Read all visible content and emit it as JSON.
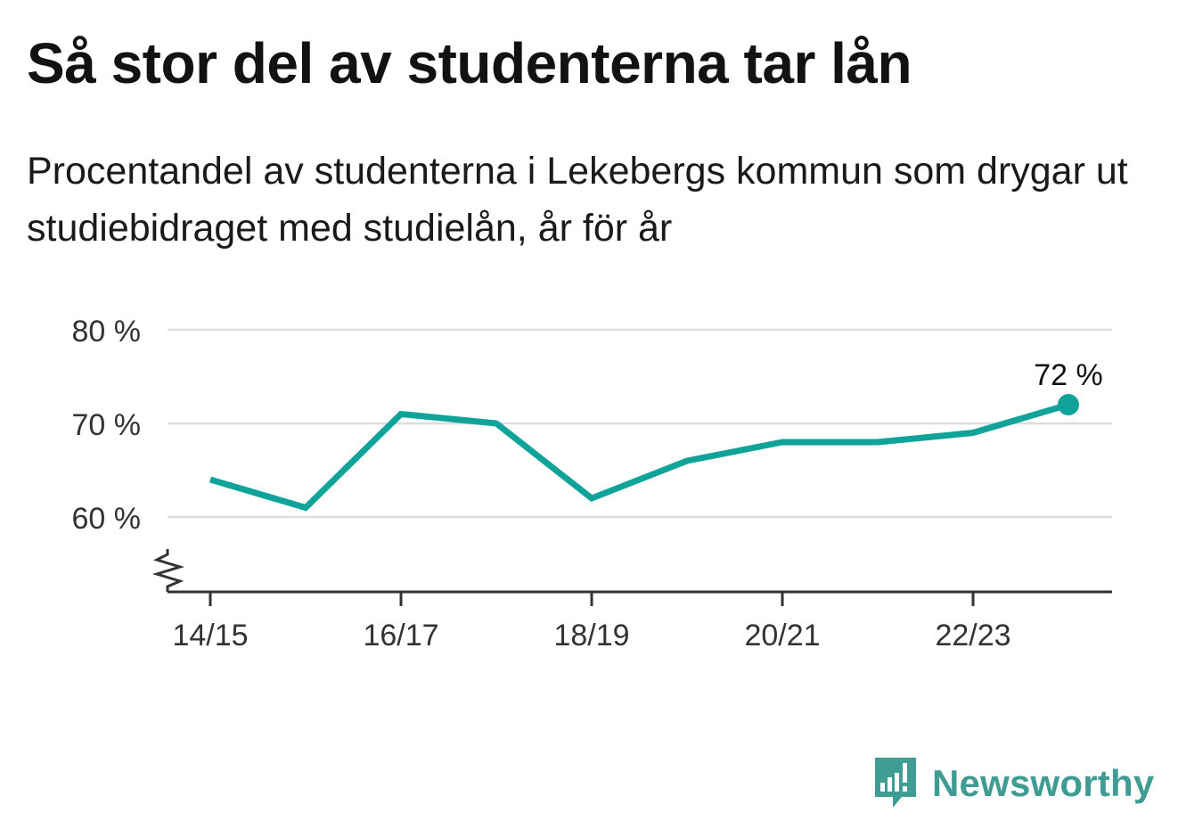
{
  "title": "Så stor del av studenterna tar lån",
  "subtitle": "Procentandel av studenterna i Lekebergs kommun som drygar ut studiebidraget med studielån, år för år",
  "brand": {
    "name": "Newsworthy",
    "logo_icon": "newsworthy-logo-icon"
  },
  "colors": {
    "line": "#0fa39a",
    "grid": "#dddddd",
    "axis": "#333333",
    "brand": "#3f9c92"
  },
  "chart_data": {
    "type": "line",
    "x": [
      "14/15",
      "15/16",
      "16/17",
      "17/18",
      "18/19",
      "19/20",
      "20/21",
      "21/22",
      "22/23",
      "23/24"
    ],
    "values": [
      64,
      61,
      71,
      70,
      62,
      66,
      68,
      68,
      69,
      72
    ],
    "x_tick_labels": [
      "14/15",
      "16/17",
      "18/19",
      "20/21",
      "22/23"
    ],
    "y_ticks": [
      60,
      70,
      80
    ],
    "y_tick_labels": [
      "60 %",
      "70 %",
      "80 %"
    ],
    "ylim": [
      52,
      80
    ],
    "axis_break": true,
    "grid": true,
    "end_label": "72 %"
  }
}
